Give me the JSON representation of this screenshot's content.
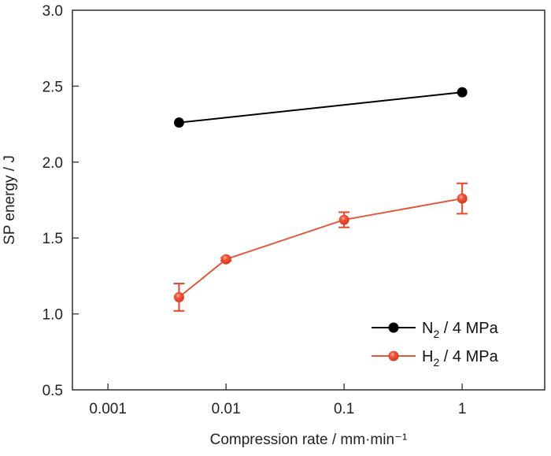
{
  "chart_data": {
    "type": "line",
    "title": "",
    "xlabel": "Compression rate / mm·min⁻¹",
    "ylabel": "SP energy / J",
    "xscale": "log",
    "xlim": [
      0.0005,
      5
    ],
    "ylim": [
      0.5,
      3.0
    ],
    "xticks": [
      0.001,
      0.01,
      0.1,
      1
    ],
    "xtick_labels": [
      "0.001",
      "0.01",
      "0.1",
      "1"
    ],
    "yticks": [
      0.5,
      1.0,
      1.5,
      2.0,
      2.5,
      3.0
    ],
    "ytick_labels": [
      "0.5",
      "1.0",
      "1.5",
      "2.0",
      "2.5",
      "3.0"
    ],
    "grid": false,
    "legend_position": "bottom-right",
    "series": [
      {
        "name": "N2 / 4 MPa",
        "label_main": "N",
        "label_sub": "2",
        "label_rest": " / 4 MPa",
        "color": "#000000",
        "marker": "circle",
        "x": [
          0.004,
          1
        ],
        "y": [
          2.26,
          2.46
        ],
        "yerr": [
          0,
          0
        ]
      },
      {
        "name": "H2 / 4 MPa",
        "label_main": "H",
        "label_sub": "2",
        "label_rest": " / 4 MPa",
        "color": "#e8452a",
        "marker": "circle",
        "x": [
          0.004,
          0.01,
          0.1,
          1
        ],
        "y": [
          1.11,
          1.36,
          1.62,
          1.76
        ],
        "yerr": [
          0.09,
          0.01,
          0.05,
          0.1
        ]
      }
    ]
  }
}
